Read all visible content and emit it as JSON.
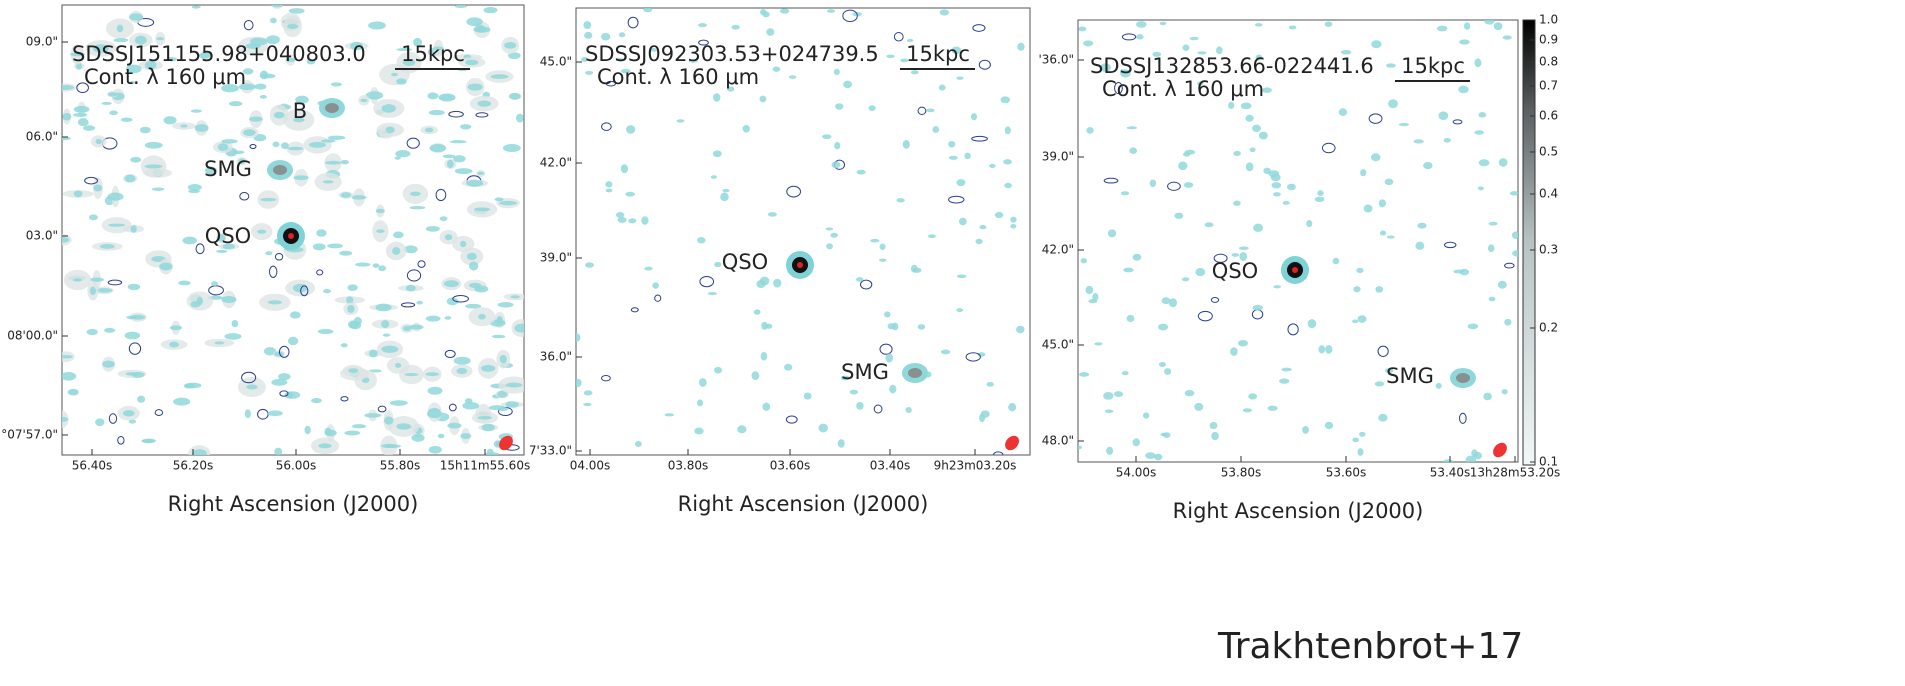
{
  "panels": [
    {
      "target": "SDSSJ151155.98+040803.0",
      "scale": "15kpc",
      "band": "Cont. λ 160 μm",
      "labels": [
        "B",
        "SMG",
        "QSO"
      ],
      "yticks": [
        "09.0\"",
        "06.0\"",
        "03.0\"",
        "08'00.0\"",
        "°07'57.0\""
      ],
      "xticks": [
        "56.40s",
        "56.20s",
        "56.00s",
        "55.80s",
        "15h11m55.60s"
      ],
      "xlabel": "Right Ascension (J2000)"
    },
    {
      "target": "SDSSJ092303.53+024739.5",
      "scale": "15kpc",
      "band": "Cont. λ 160 μm",
      "labels": [
        "QSO",
        "SMG"
      ],
      "yticks": [
        "45.0\"",
        "42.0\"",
        "39.0\"",
        "36.0\"",
        "7'33.0\""
      ],
      "xticks": [
        "04.00s",
        "03.80s",
        "03.60s",
        "03.40s",
        "9h23m03.20s"
      ],
      "xlabel": "Right Ascension (J2000)"
    },
    {
      "target": "SDSSJ132853.66-022441.6",
      "scale": "15kpc",
      "band": "Cont. λ 160 μm",
      "labels": [
        "QSO",
        "SMG"
      ],
      "yticks": [
        "'36.0\"",
        "39.0\"",
        "42.0\"",
        "45.0\"",
        "48.0\""
      ],
      "xticks": [
        "54.00s",
        "53.80s",
        "53.60s",
        "53.40s",
        "13h28m53.20s"
      ],
      "xlabel": "Right Ascension (J2000)"
    }
  ],
  "colorbar": {
    "ticks": [
      "1.0",
      "0.9",
      "0.8",
      "0.7",
      "0.6",
      "0.5",
      "0.4",
      "0.3",
      "0.2",
      "0.1"
    ]
  },
  "credit": "Trakhtenbrot+17"
}
